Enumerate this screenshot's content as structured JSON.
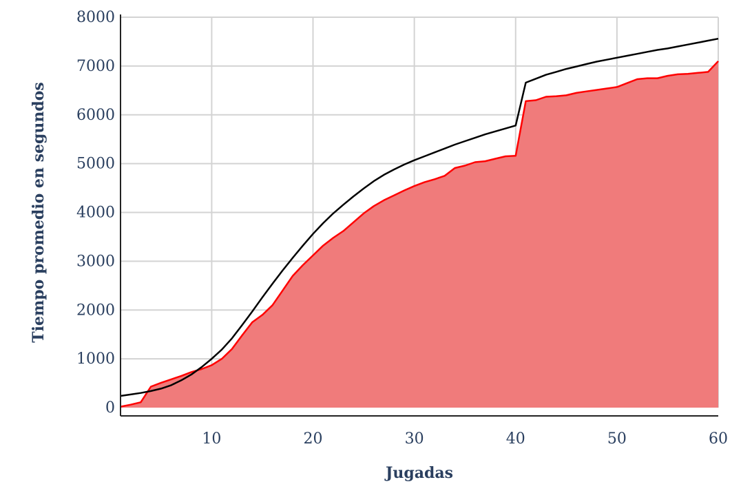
{
  "chart_data": {
    "type": "area",
    "title": "",
    "xlabel": "Jugadas",
    "ylabel": "Tiempo promedio en segundos",
    "xlim": [
      1,
      60
    ],
    "ylim": [
      0,
      8000
    ],
    "x_ticks": [
      10,
      20,
      30,
      40,
      50,
      60
    ],
    "y_ticks": [
      0,
      1000,
      2000,
      3000,
      4000,
      5000,
      6000,
      7000,
      8000
    ],
    "grid": true,
    "legend": "none",
    "series": [
      {
        "type": "area",
        "color": "#ff0000",
        "fill": "#f07b7b",
        "x": [
          1,
          2,
          3,
          4,
          5,
          6,
          7,
          8,
          9,
          10,
          11,
          12,
          13,
          14,
          15,
          16,
          17,
          18,
          19,
          20,
          21,
          22,
          23,
          24,
          25,
          26,
          27,
          28,
          29,
          30,
          31,
          32,
          33,
          34,
          35,
          36,
          37,
          38,
          39,
          40,
          41,
          42,
          43,
          44,
          45,
          46,
          47,
          48,
          49,
          50,
          51,
          52,
          53,
          54,
          55,
          56,
          57,
          58,
          59,
          60
        ],
        "values": [
          20,
          60,
          110,
          430,
          510,
          580,
          650,
          730,
          790,
          870,
          1000,
          1200,
          1480,
          1750,
          1900,
          2100,
          2400,
          2700,
          2920,
          3120,
          3320,
          3480,
          3620,
          3800,
          3980,
          4130,
          4250,
          4350,
          4450,
          4540,
          4620,
          4680,
          4750,
          4910,
          4960,
          5030,
          5050,
          5100,
          5150,
          5160,
          6280,
          6300,
          6370,
          6380,
          6400,
          6450,
          6480,
          6510,
          6540,
          6570,
          6650,
          6730,
          6750,
          6750,
          6800,
          6830,
          6840,
          6860,
          6880,
          7100
        ]
      },
      {
        "type": "line",
        "color": "#000000",
        "x": [
          1,
          2,
          3,
          4,
          5,
          6,
          7,
          8,
          9,
          10,
          11,
          12,
          13,
          14,
          15,
          16,
          17,
          18,
          19,
          20,
          21,
          22,
          23,
          24,
          25,
          26,
          27,
          28,
          29,
          30,
          31,
          32,
          33,
          34,
          35,
          36,
          37,
          38,
          39,
          40,
          41,
          42,
          43,
          44,
          45,
          46,
          47,
          48,
          49,
          50,
          51,
          52,
          53,
          54,
          55,
          56,
          57,
          58,
          59,
          60
        ],
        "values": [
          240,
          270,
          300,
          340,
          390,
          460,
          560,
          680,
          830,
          1000,
          1190,
          1420,
          1690,
          1970,
          2260,
          2540,
          2810,
          3070,
          3320,
          3560,
          3780,
          3980,
          4160,
          4330,
          4490,
          4640,
          4770,
          4880,
          4980,
          5070,
          5150,
          5230,
          5310,
          5390,
          5460,
          5530,
          5600,
          5660,
          5720,
          5780,
          6660,
          6740,
          6820,
          6880,
          6940,
          6990,
          7040,
          7090,
          7130,
          7170,
          7210,
          7250,
          7290,
          7330,
          7360,
          7400,
          7440,
          7480,
          7520,
          7560
        ]
      }
    ]
  }
}
